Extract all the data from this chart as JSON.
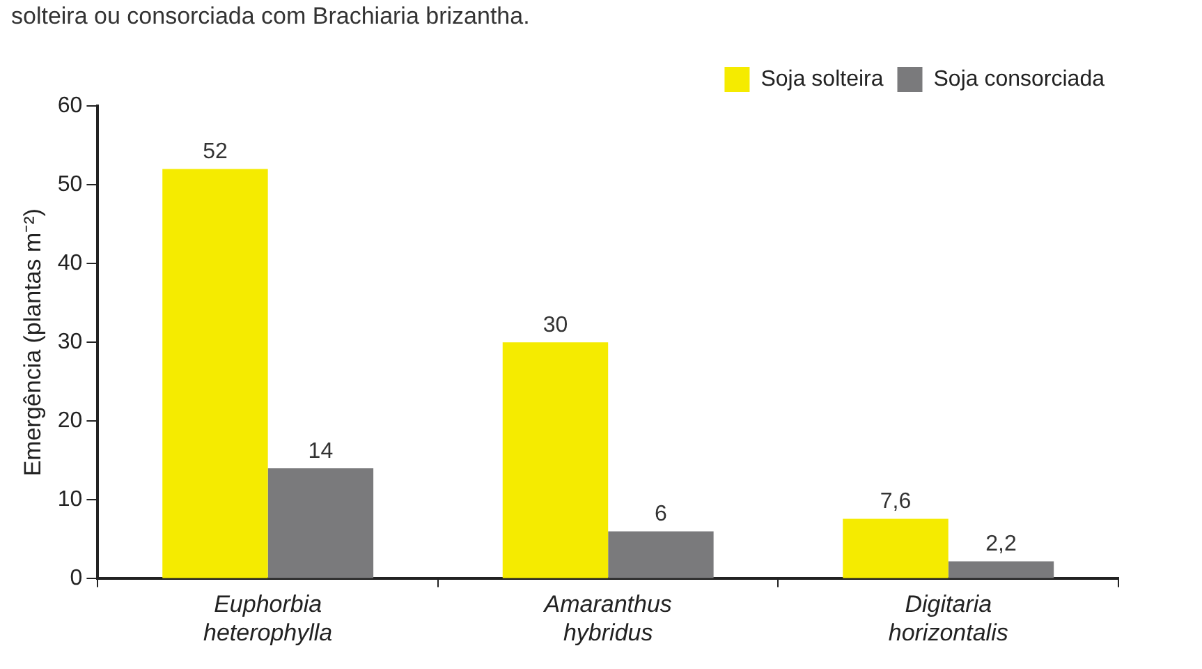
{
  "chart_data": {
    "type": "bar",
    "annotations": [
      "solteira ou consorciada com Brachiaria brizantha."
    ],
    "ylabel": "Emergência (plantas m⁻²)",
    "categories": [
      "Euphorbia heterophylla",
      "Amaranthus hybridus",
      "Digitaria horizontalis"
    ],
    "series": [
      {
        "name": "Soja solteira",
        "color": "#f5eb00",
        "values": [
          52,
          30,
          7.6
        ],
        "value_labels": [
          "52",
          "30",
          "7,6"
        ]
      },
      {
        "name": "Soja consorciada",
        "color": "#7a7a7c",
        "values": [
          14,
          6,
          2.2
        ],
        "value_labels": [
          "14",
          "6",
          "2,2"
        ]
      }
    ],
    "ylim": [
      0,
      60
    ],
    "yticks": [
      0,
      10,
      20,
      30,
      40,
      50,
      60
    ],
    "grid": false,
    "legend": "top right"
  }
}
